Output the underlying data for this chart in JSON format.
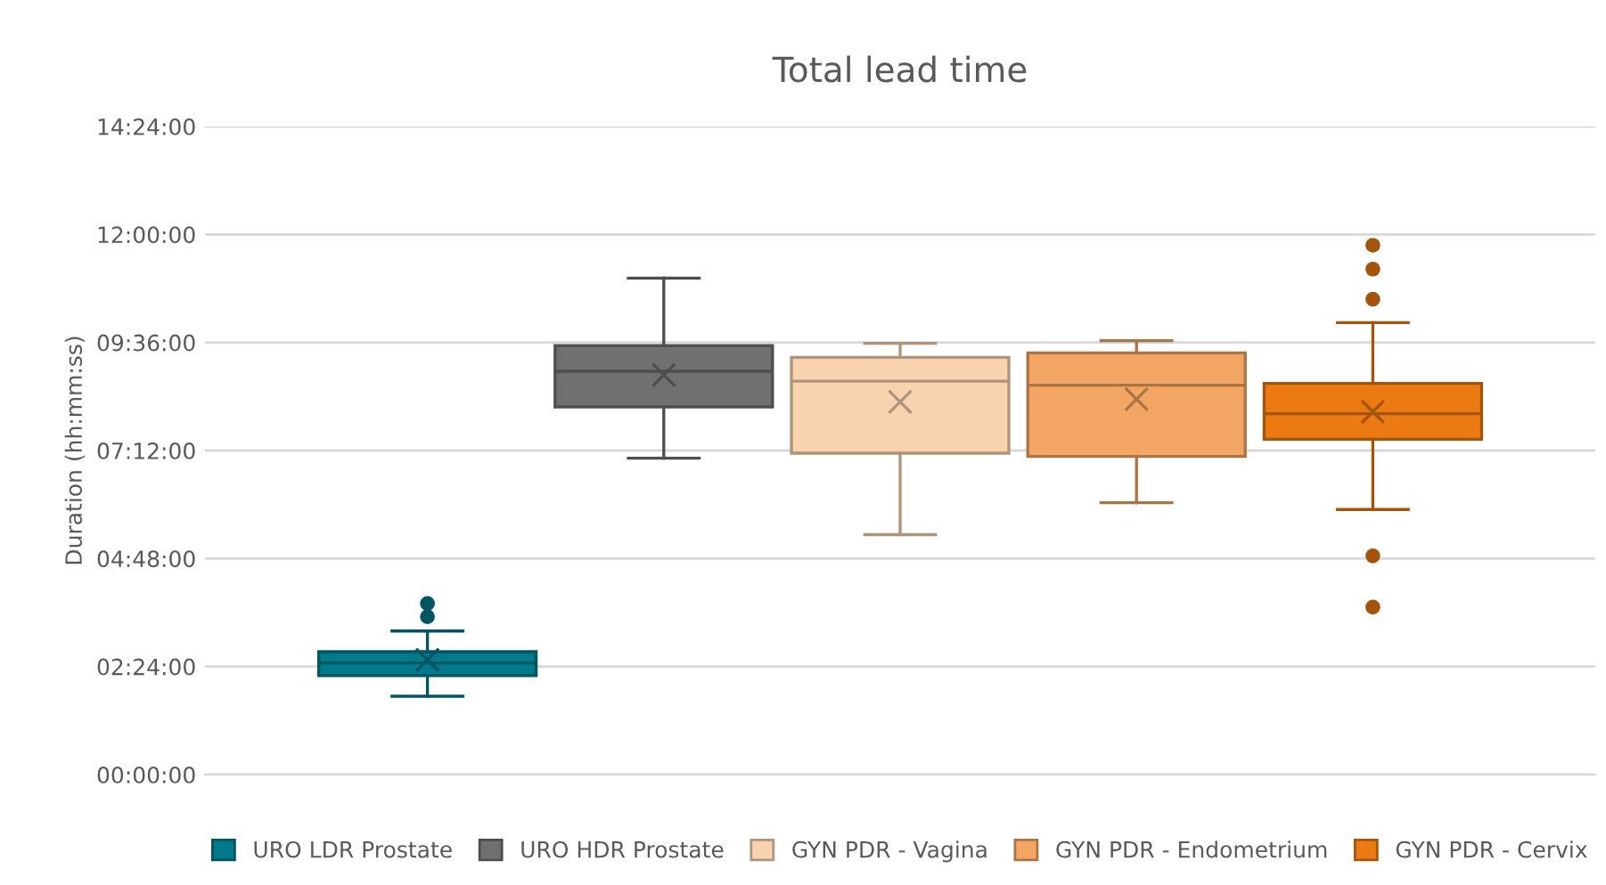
{
  "chart_data": {
    "type": "box",
    "title": "Total lead time",
    "ylabel": "Duration (hh:mm:ss)",
    "categories": [
      null
    ],
    "series": [
      {
        "name": "URO LDR Prostate",
        "color": "#00798a",
        "boxes": [
          {
            "low": 1.74,
            "q1": 2.2,
            "median": 2.48,
            "q3": 2.73,
            "high": 3.19,
            "mean": 2.55,
            "outliers": [
              3.51,
              3.8
            ]
          }
        ]
      },
      {
        "name": "URO HDR Prostate",
        "color": "#707070",
        "boxes": [
          {
            "low": 7.03,
            "q1": 8.17,
            "median": 8.96,
            "q3": 9.53,
            "high": 11.03,
            "mean": 8.88
          }
        ]
      },
      {
        "name": "GYN PDR - Vagina",
        "color": "#f9d3b0",
        "boxes": [
          {
            "low": 5.33,
            "q1": 7.14,
            "median": 8.74,
            "q3": 9.27,
            "high": 9.58,
            "mean": 8.28
          }
        ]
      },
      {
        "name": "GYN PDR - Endometrium",
        "color": "#f3a663",
        "boxes": [
          {
            "low": 6.04,
            "q1": 7.07,
            "median": 8.65,
            "q3": 9.37,
            "high": 9.64,
            "mean": 8.34
          }
        ]
      },
      {
        "name": "GYN PDR - Cervix",
        "color": "#eb7a12",
        "boxes": [
          {
            "low": 5.89,
            "q1": 7.45,
            "median": 8.02,
            "q3": 8.69,
            "high": 10.04,
            "mean": 8.06,
            "outliers": [
              11.76,
              11.23,
              10.56,
              4.86,
              3.72
            ]
          }
        ]
      }
    ],
    "ylim": [
      0,
      14.4
    ],
    "yticks": [
      {
        "value": 0,
        "label": "00:00:00"
      },
      {
        "value": 2.4,
        "label": "02:24:00"
      },
      {
        "value": 4.8,
        "label": "04:48:00"
      },
      {
        "value": 7.2,
        "label": "07:12:00"
      },
      {
        "value": 9.6,
        "label": "09:36:00"
      },
      {
        "value": 12,
        "label": "12:00:00"
      },
      {
        "value": 14.4,
        "label": "14:24:00"
      }
    ],
    "grid": "y",
    "legend": "bottom",
    "marker": "circle"
  }
}
